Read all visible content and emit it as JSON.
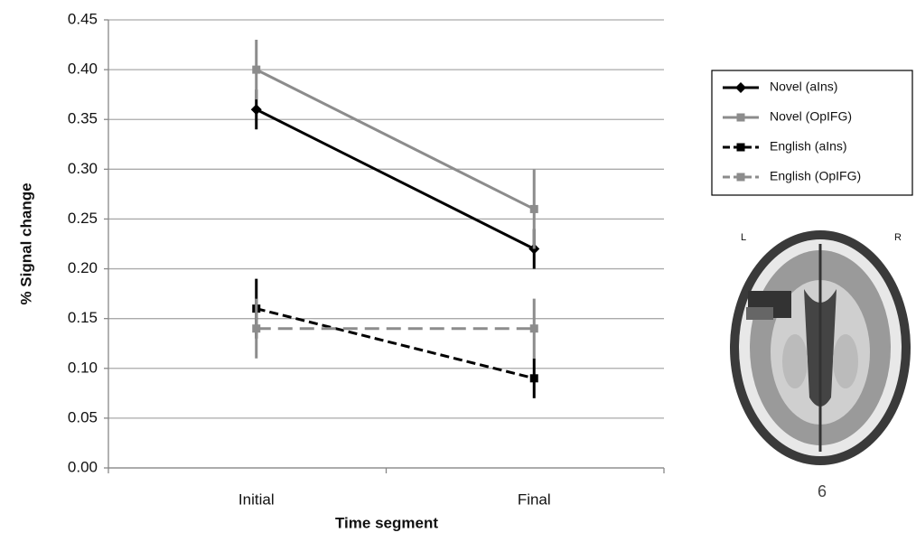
{
  "chart_data": {
    "type": "line",
    "y_label": "% Signal change",
    "x_label": "Time segment",
    "categories": [
      "Initial",
      "Final"
    ],
    "ylim": [
      0,
      0.45
    ],
    "yticks": [
      {
        "value": 0,
        "label": "0.00"
      },
      0.05,
      {
        "value": 0.1,
        "label": "0.10"
      },
      0.15,
      {
        "value": 0.2,
        "label": "0.20"
      },
      0.25,
      {
        "value": 0.3,
        "label": "0.30"
      },
      0.35,
      {
        "value": 0.4,
        "label": "0.40"
      },
      0.45
    ],
    "grid": true,
    "legend": "right",
    "series": [
      {
        "name": "Novel (aIns)",
        "color": "#000000",
        "dash": "solid",
        "marker": "diamond",
        "values": [
          0.36,
          0.22
        ],
        "errors": [
          0.02,
          0.02
        ]
      },
      {
        "name": "Novel (OpIFG)",
        "color": "#8c8c8c",
        "dash": "solid",
        "marker": "square",
        "values": [
          0.4,
          0.26
        ],
        "errors": [
          0.03,
          0.04
        ]
      },
      {
        "name": "English (aIns)",
        "color": "#000000",
        "dash": "dashed",
        "marker": "square",
        "values": [
          0.16,
          0.09
        ],
        "errors": [
          0.03,
          0.02
        ]
      },
      {
        "name": "English (OpIFG)",
        "color": "#8c8c8c",
        "dash": "dashed",
        "marker": "square",
        "values": [
          0.14,
          0.14
        ],
        "errors": [
          0.03,
          0.03
        ]
      }
    ],
    "annotations": [
      "L",
      "R",
      "6"
    ]
  }
}
